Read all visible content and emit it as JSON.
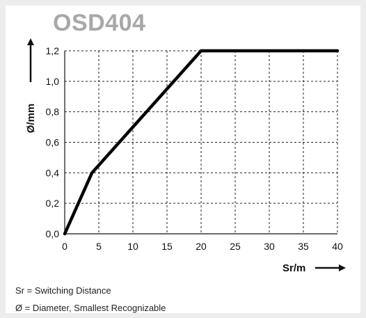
{
  "chart_data": {
    "type": "line",
    "title": "OSD404",
    "xlabel": "Sr/m",
    "ylabel": "Ø/mm",
    "xlim": [
      0,
      40
    ],
    "ylim": [
      0.0,
      1.2
    ],
    "x_ticks": [
      "0",
      "5",
      "10",
      "15",
      "20",
      "25",
      "30",
      "35",
      "40"
    ],
    "y_ticks": [
      "0,0",
      "0,2",
      "0,4",
      "0,6",
      "0,8",
      "1,0",
      "1,2"
    ],
    "grid": true,
    "series": [
      {
        "x": [
          0,
          4,
          20,
          40
        ],
        "y": [
          0.0,
          0.4,
          1.2,
          1.2
        ]
      }
    ]
  },
  "legend": {
    "line1": "Sr = Switching Distance",
    "line2": "Ø = Diameter, Smallest Recognizable"
  }
}
